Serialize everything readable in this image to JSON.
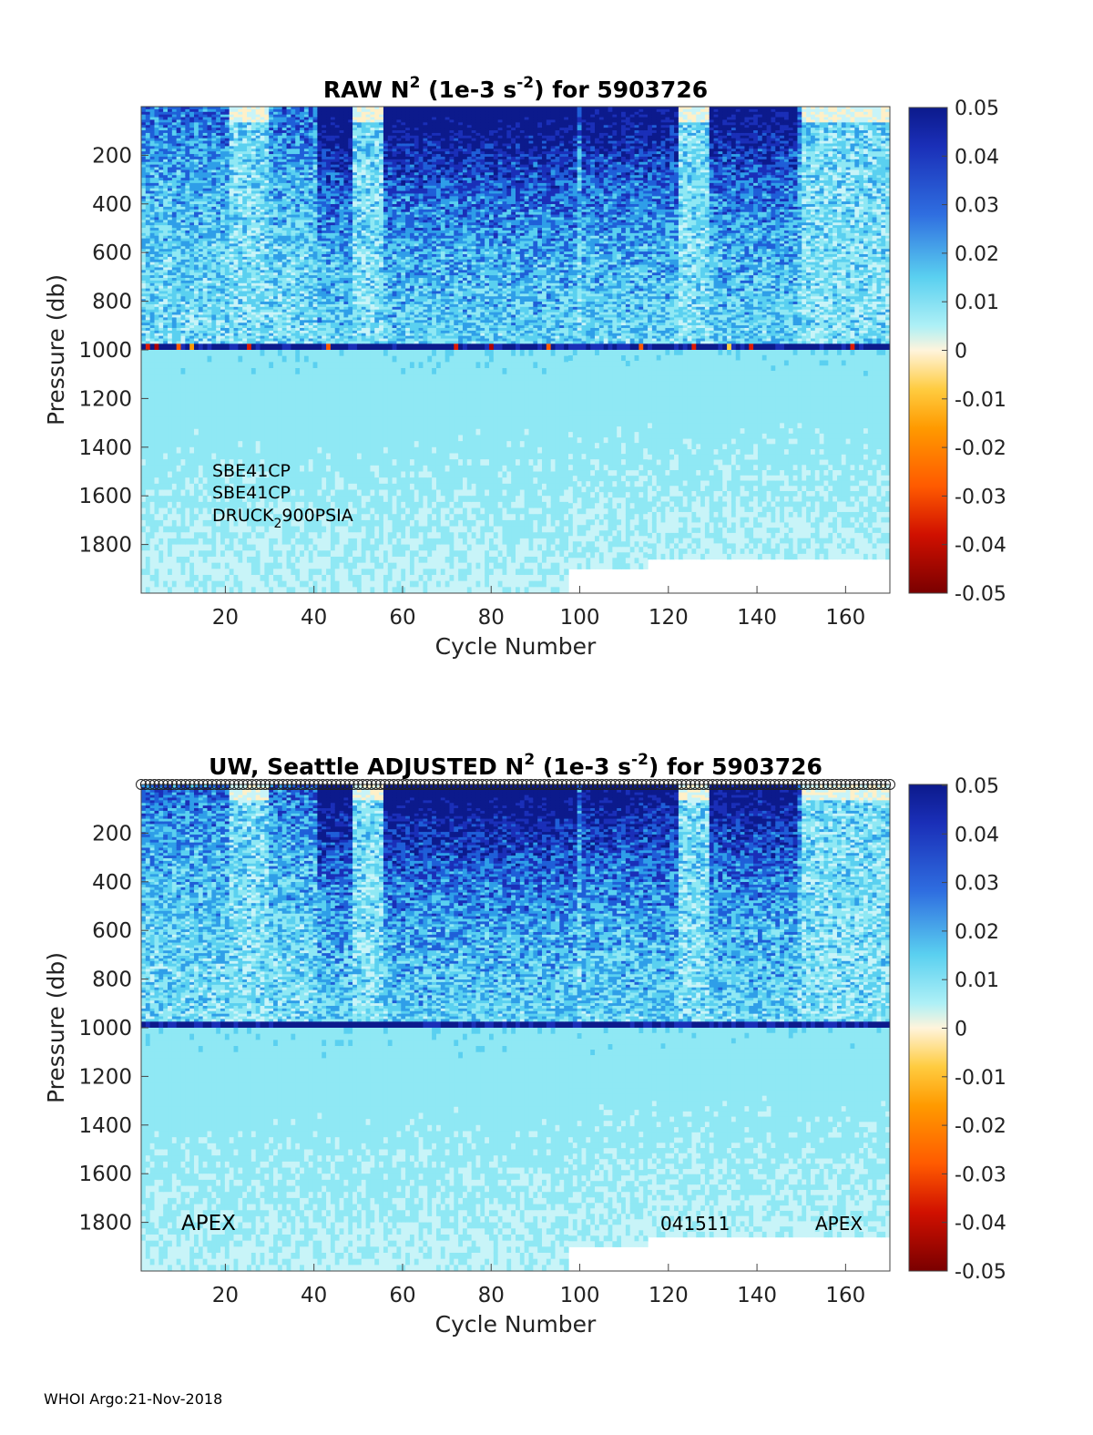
{
  "footer": "WHOI Argo:21-Nov-2018",
  "colormap": [
    "#7a0000",
    "#b00000",
    "#e01a00",
    "#ff5a00",
    "#ff9a00",
    "#ffcc40",
    "#fff0c8",
    "#c8f4f8",
    "#8fe8f4",
    "#5ad0f0",
    "#2f9ee8",
    "#1f5fd8",
    "#1a2fb8",
    "#0c1a8c"
  ],
  "chart_data": [
    {
      "type": "heatmap",
      "title": "RAW N",
      "title_sup": "2",
      "title_mid": " (1e-3 s",
      "title_sup2": "-2",
      "title_end": ") for 5903726",
      "xlabel": "Cycle Number",
      "ylabel": "Pressure (db)",
      "xlim": [
        1,
        170
      ],
      "ylim": [
        0,
        2000
      ],
      "y_reversed": true,
      "xticks": [
        20,
        40,
        60,
        80,
        100,
        120,
        140,
        160
      ],
      "yticks": [
        200,
        400,
        600,
        800,
        1000,
        1200,
        1400,
        1600,
        1800
      ],
      "colorbar": {
        "min": -0.05,
        "max": 0.05,
        "ticks": [
          "0.05",
          "0.04",
          "0.03",
          "0.02",
          "0.01",
          "0",
          "-0.01",
          "-0.02",
          "-0.03",
          "-0.04",
          "-0.05"
        ]
      },
      "annotations": [
        "SBE41CP",
        "SBE41CP",
        "DRUCK",
        "2",
        "900PSIA"
      ]
    },
    {
      "type": "heatmap",
      "title": "UW, Seattle  ADJUSTED N",
      "title_sup": "2",
      "title_mid": " (1e-3 s",
      "title_sup2": "-2",
      "title_end": ") for 5903726",
      "xlabel": "Cycle Number",
      "ylabel": "Pressure (db)",
      "xlim": [
        1,
        170
      ],
      "ylim": [
        0,
        2000
      ],
      "y_reversed": true,
      "xticks": [
        20,
        40,
        60,
        80,
        100,
        120,
        140,
        160
      ],
      "yticks": [
        200,
        400,
        600,
        800,
        1000,
        1200,
        1400,
        1600,
        1800
      ],
      "colorbar": {
        "min": -0.05,
        "max": 0.05,
        "ticks": [
          "0.05",
          "0.04",
          "0.03",
          "0.02",
          "0.01",
          "0",
          "-0.01",
          "-0.02",
          "-0.03",
          "-0.04",
          "-0.05"
        ]
      },
      "annotations": [
        "APEX",
        "041511",
        "APEX"
      ]
    }
  ]
}
